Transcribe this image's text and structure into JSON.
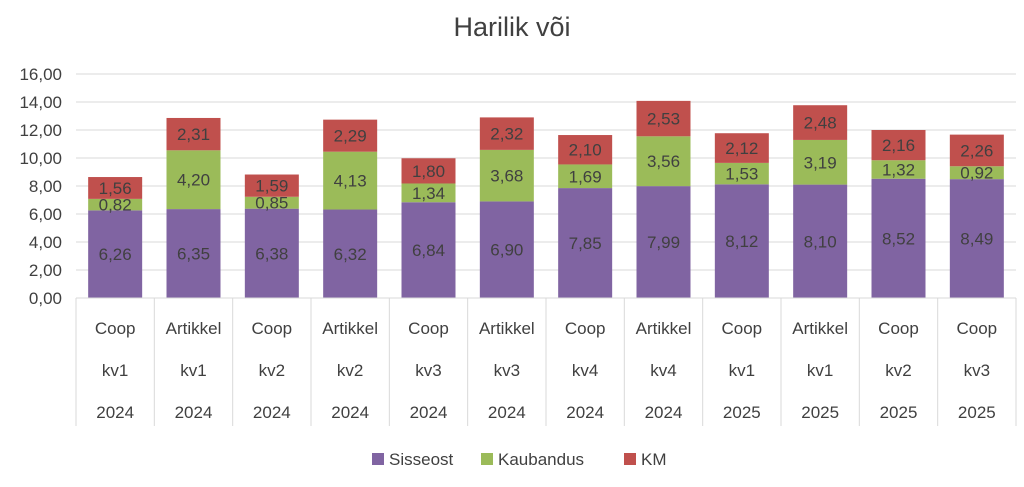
{
  "chart_data": {
    "type": "bar",
    "stacked": true,
    "title": "Harilik või",
    "xlabel": "",
    "ylabel": "",
    "ylim": [
      0,
      16
    ],
    "yticks": [
      "0,00",
      "2,00",
      "4,00",
      "6,00",
      "8,00",
      "10,00",
      "12,00",
      "14,00",
      "16,00"
    ],
    "grid": true,
    "legend_position": "bottom",
    "categories": [
      {
        "store": "Coop",
        "quarter": "kv1",
        "year": "2024"
      },
      {
        "store": "Artikkel",
        "quarter": "kv1",
        "year": "2024"
      },
      {
        "store": "Coop",
        "quarter": "kv2",
        "year": "2024"
      },
      {
        "store": "Artikkel",
        "quarter": "kv2",
        "year": "2024"
      },
      {
        "store": "Coop",
        "quarter": "kv3",
        "year": "2024"
      },
      {
        "store": "Artikkel",
        "quarter": "kv3",
        "year": "2024"
      },
      {
        "store": "Coop",
        "quarter": "kv4",
        "year": "2024"
      },
      {
        "store": "Artikkel",
        "quarter": "kv4",
        "year": "2024"
      },
      {
        "store": "Coop",
        "quarter": "kv1",
        "year": "2025"
      },
      {
        "store": "Artikkel",
        "quarter": "kv1",
        "year": "2025"
      },
      {
        "store": "Coop",
        "quarter": "kv2",
        "year": "2025"
      },
      {
        "store": "Coop",
        "quarter": "kv3",
        "year": "2025"
      }
    ],
    "series": [
      {
        "name": "Sisseost",
        "color": "#8064a2",
        "values": [
          6.26,
          6.35,
          6.38,
          6.32,
          6.84,
          6.9,
          7.85,
          7.99,
          8.12,
          8.1,
          8.52,
          8.49
        ],
        "labels": [
          "6,26",
          "6,35",
          "6,38",
          "6,32",
          "6,84",
          "6,90",
          "7,85",
          "7,99",
          "8,12",
          "8,10",
          "8,52",
          "8,49"
        ]
      },
      {
        "name": "Kaubandus",
        "color": "#9bbb59",
        "values": [
          0.82,
          4.2,
          0.85,
          4.13,
          1.34,
          3.68,
          1.69,
          3.56,
          1.53,
          3.19,
          1.32,
          0.92
        ],
        "labels": [
          "0,82",
          "4,20",
          "0,85",
          "4,13",
          "1,34",
          "3,68",
          "1,69",
          "3,56",
          "1,53",
          "3,19",
          "1,32",
          "0,92"
        ]
      },
      {
        "name": "KM",
        "color": "#c0504d",
        "values": [
          1.56,
          2.31,
          1.59,
          2.29,
          1.8,
          2.32,
          2.1,
          2.53,
          2.12,
          2.48,
          2.16,
          2.26
        ],
        "labels": [
          "1,56",
          "2,31",
          "1,59",
          "2,29",
          "1,80",
          "2,32",
          "2,10",
          "2,53",
          "2,12",
          "2,48",
          "2,16",
          "2,26"
        ]
      }
    ]
  }
}
